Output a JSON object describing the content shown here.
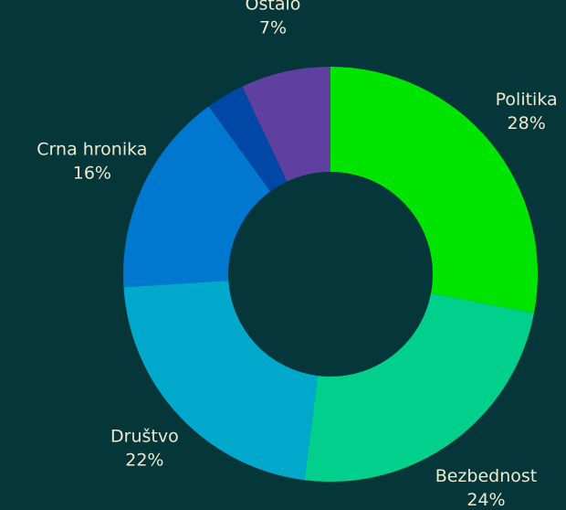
{
  "chart_data": {
    "type": "donut",
    "categories": [
      "Politika",
      "Bezbednost",
      "Društvo",
      "Crna hronika",
      null,
      "Ostalo"
    ],
    "values": [
      28,
      24,
      22,
      16,
      3,
      7
    ],
    "value_labels": [
      "28%",
      "24%",
      "22%",
      "16%",
      null,
      "7%"
    ],
    "colors": [
      "#00e400",
      "#00d08c",
      "#00a9cc",
      "#0078d0",
      "#0047a6",
      "#5f3fa0"
    ]
  }
}
